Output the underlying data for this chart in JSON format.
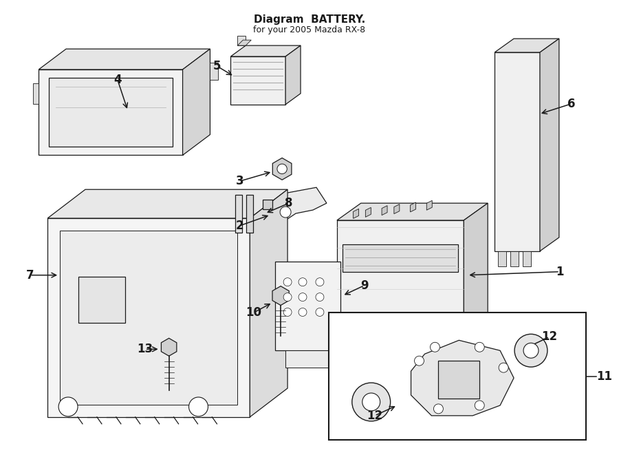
{
  "bg_color": "#ffffff",
  "line_color": "#1a1a1a",
  "fig_width": 9.0,
  "fig_height": 6.61,
  "dpi": 100,
  "title": "Diagram  BATTERY.",
  "subtitle": "for your 2005 Mazda RX-8",
  "title_fontsize": 11,
  "subtitle_fontsize": 9,
  "label_fontsize": 12,
  "label_fontweight": "bold",
  "arrow_lw": 1.1,
  "part_lw": 0.9,
  "shadow_color": "#cccccc",
  "mid_gray": "#d8d8d8",
  "light_gray": "#efefef",
  "white": "#ffffff"
}
